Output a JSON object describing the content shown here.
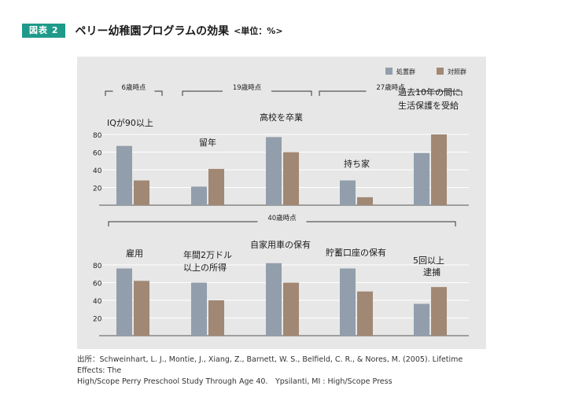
{
  "figure": {
    "badge": "図表 2",
    "title": "ペリー幼稚園プログラムの効果",
    "unit": "<単位：%>"
  },
  "source": {
    "line1": "出所：Schweinhart, L. J., Montie, J., Xiang, Z., Barnett, W. S., Belfield, C. R., & Nores, M. (2005). Lifetime Effects: The",
    "line2": "High/Scope Perry Preschool Study Through Age 40.　Ypsilanti, MI : High/Scope Press"
  },
  "colors": {
    "treatment": "#929eab",
    "control": "#a18874",
    "panel": "#e7e7e7"
  },
  "chart_data": [
    {
      "type": "bar",
      "legend": [
        "処置群",
        "対照群"
      ],
      "legend_position": "top-right",
      "age_groups": [
        {
          "label": "6歳時点",
          "categories": [
            0
          ]
        },
        {
          "label": "19歳時点",
          "categories": [
            1,
            2
          ]
        },
        {
          "label": "27歳時点",
          "categories": [
            3,
            4
          ]
        }
      ],
      "categories": [
        "IQが90以上",
        "留年",
        "高校を卒業",
        "持ち家",
        "過去10年の間に生活保護を受給"
      ],
      "series": [
        {
          "name": "処置群",
          "values": [
            67,
            21,
            77,
            28,
            59
          ]
        },
        {
          "name": "対照群",
          "values": [
            28,
            41,
            60,
            9,
            80
          ]
        }
      ],
      "yticks": [
        20,
        40,
        60,
        80
      ],
      "ylim": [
        0,
        100
      ],
      "grid": true
    },
    {
      "type": "bar",
      "age_groups": [
        {
          "label": "40歳時点",
          "categories": [
            0,
            1,
            2,
            3,
            4
          ]
        }
      ],
      "categories": [
        "雇用",
        "年間2万ドル以上の所得",
        "自家用車の保有",
        "貯蓄口座の保有",
        "5回以上逮捕"
      ],
      "series": [
        {
          "name": "処置群",
          "values": [
            76,
            60,
            82,
            76,
            36
          ]
        },
        {
          "name": "対照群",
          "values": [
            62,
            40,
            60,
            50,
            55
          ]
        }
      ],
      "yticks": [
        20,
        40,
        60,
        80
      ],
      "ylim": [
        0,
        100
      ],
      "grid": true
    }
  ]
}
